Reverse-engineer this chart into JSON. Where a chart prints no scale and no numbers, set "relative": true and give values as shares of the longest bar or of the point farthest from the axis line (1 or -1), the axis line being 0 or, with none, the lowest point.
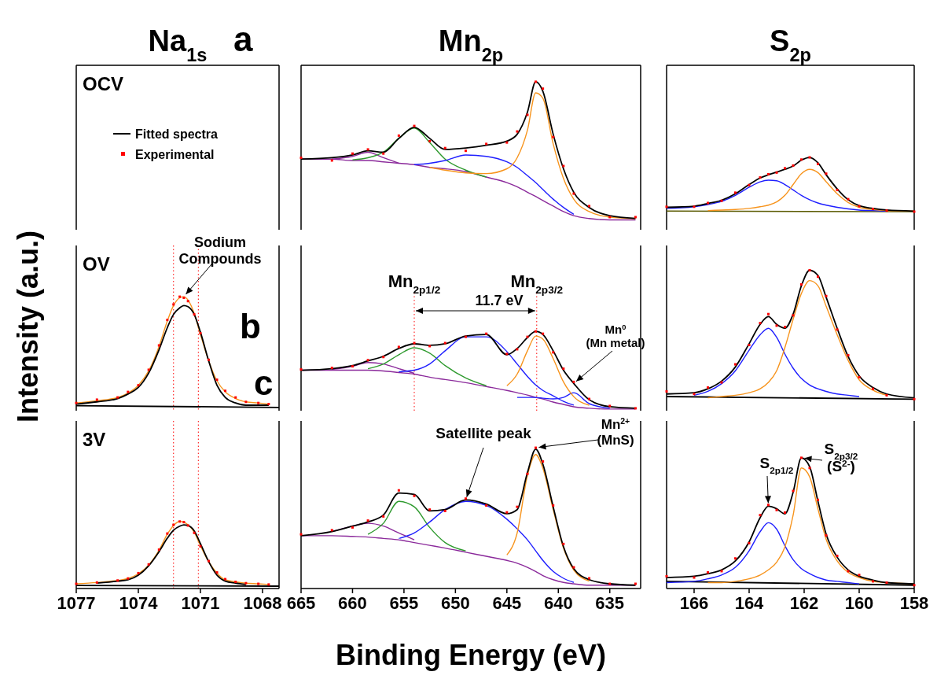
{
  "chart_data": [
    {
      "type": "other",
      "title": "Na$_{1s}$",
      "ylabel": "Intensity (a.u.)",
      "annotations": [
        "OCV",
        "a"
      ]
    },
    {
      "type": "line",
      "title": "Mn$_{2p}$",
      "relative": true,
      "xlim": [
        665,
        632
      ],
      "tick_labels": false,
      "x": [
        665,
        662,
        660,
        658.5,
        657,
        655.5,
        654,
        652.5,
        651,
        649,
        647,
        645,
        644,
        643,
        642.2,
        641.5,
        640.5,
        639.5,
        638.5,
        637,
        635,
        632.5
      ],
      "series": [
        {
          "color": "#8b2a9b",
          "values": [
            0.44,
            0.44,
            0.43,
            0.43,
            0.42,
            0.41,
            0.4,
            0.38,
            0.37,
            0.35,
            0.31,
            0.27,
            0.24,
            0.2,
            0.17,
            0.14,
            0.1,
            0.06,
            0.03,
            0.01,
            0,
            0
          ]
        },
        {
          "color": "#8b2a9b",
          "values": [
            null,
            0.44,
            0.46,
            0.49,
            0.45,
            0.41,
            null,
            null,
            null,
            null,
            null,
            null,
            null,
            null,
            null,
            null,
            null,
            null,
            null,
            null,
            null,
            null
          ]
        },
        {
          "color": "#2e9a2e",
          "values": [
            null,
            null,
            0.435,
            0.45,
            0.49,
            0.59,
            0.665,
            0.56,
            0.44,
            0.36,
            0.31,
            null,
            null,
            null,
            null,
            null,
            null,
            null,
            null,
            null,
            null,
            null
          ]
        },
        {
          "color": "#1f1fff",
          "values": [
            null,
            null,
            null,
            null,
            null,
            null,
            0.4,
            0.41,
            0.43,
            0.47,
            0.46,
            0.42,
            0.38,
            0.32,
            0.27,
            0.22,
            0.15,
            0.09,
            0.04,
            null,
            null,
            null
          ]
        },
        {
          "color": "#f7941d",
          "values": [
            null,
            null,
            null,
            null,
            null,
            null,
            null,
            0.38,
            0.36,
            0.34,
            0.335,
            0.37,
            0.45,
            0.65,
            0.92,
            0.88,
            0.55,
            0.3,
            0.15,
            0.06,
            0.02,
            0.01
          ]
        },
        {
          "color": "#000000",
          "values": [
            0.44,
            0.45,
            0.47,
            0.5,
            0.49,
            0.59,
            0.67,
            0.59,
            0.51,
            0.52,
            0.54,
            0.57,
            0.62,
            0.78,
            1.0,
            0.93,
            0.62,
            0.37,
            0.2,
            0.09,
            0.03,
            0.01
          ]
        },
        {
          "type": "scatter",
          "marker": "square",
          "color": "#ff0000",
          "values": [
            0.45,
            0.43,
            0.48,
            0.51,
            0.48,
            0.61,
            0.68,
            0.57,
            0.52,
            0.5,
            0.55,
            0.56,
            0.64,
            0.76,
            1.0,
            0.95,
            0.6,
            0.39,
            0.19,
            0.1,
            0.02,
            0.02
          ]
        }
      ]
    },
    {
      "type": "line",
      "title": "S$_{2p}$",
      "relative": true,
      "xlim": [
        167,
        158
      ],
      "tick_labels": false,
      "x": [
        167,
        166,
        165.5,
        165,
        164.5,
        164,
        163.6,
        163.3,
        163,
        162.7,
        162.4,
        162.1,
        161.8,
        161.5,
        161.2,
        160.8,
        160.4,
        160,
        159.5,
        159,
        158
      ],
      "series": [
        {
          "color": "#5a5a00",
          "x": [
            167,
            158
          ],
          "values": [
            0.01,
            0
          ]
        },
        {
          "color": "#1f1fff",
          "values": [
            0.06,
            0.09,
            0.13,
            0.19,
            0.3,
            0.45,
            0.55,
            0.58,
            0.57,
            0.5,
            0.4,
            0.3,
            0.22,
            0.16,
            0.12,
            0.08,
            0.05,
            0.03,
            0.02,
            0.01,
            null
          ]
        },
        {
          "color": "#f7941d",
          "values": [
            null,
            null,
            0.02,
            0.03,
            0.04,
            0.06,
            0.09,
            0.12,
            0.18,
            0.3,
            0.5,
            0.7,
            0.78,
            0.72,
            0.55,
            0.33,
            0.17,
            0.08,
            0.04,
            0.02,
            0.01
          ]
        },
        {
          "color": "#000000",
          "values": [
            0.08,
            0.1,
            0.15,
            0.21,
            0.33,
            0.5,
            0.62,
            0.68,
            0.73,
            0.78,
            0.84,
            0.95,
            1.0,
            0.9,
            0.68,
            0.42,
            0.22,
            0.11,
            0.06,
            0.03,
            0.01
          ]
        },
        {
          "type": "scatter",
          "marker": "square",
          "color": "#ff0000",
          "values": [
            0.09,
            0.09,
            0.16,
            0.2,
            0.35,
            0.49,
            0.63,
            0.69,
            0.72,
            0.8,
            0.85,
            0.96,
            1.0,
            0.88,
            0.7,
            0.4,
            0.23,
            0.1,
            0.05,
            0.02,
            0
          ]
        }
      ]
    },
    {
      "type": "line",
      "relative": true,
      "xlim": [
        1077,
        1067.2
      ],
      "tick_labels": false,
      "legend": "top",
      "x": [
        1077,
        1076,
        1075,
        1074.5,
        1074,
        1073.5,
        1073,
        1072.6,
        1072.3,
        1072,
        1071.8,
        1071.6,
        1071.3,
        1071,
        1070.6,
        1070.2,
        1069.8,
        1069.3,
        1068.8,
        1068.2,
        1067.7
      ],
      "annotations": [
        "OV",
        "b",
        "c",
        {
          "text": "Sodium\nCompounds",
          "x": 1071.8,
          "y": 1.0
        }
      ],
      "ref_lines": [
        {
          "axis": "x",
          "value": 1072.3,
          "color": "#ff0000",
          "line_style": "dotted"
        },
        {
          "axis": "x",
          "value": 1071.1,
          "color": "#ff0000",
          "line_style": "dotted"
        }
      ],
      "series": [
        {
          "color": "#000000",
          "x": [
            1077,
            1067.2
          ],
          "values": [
            0.015,
            0
          ]
        },
        {
          "color": "#f7941d",
          "values": [
            0.04,
            0.06,
            0.09,
            0.13,
            0.2,
            0.33,
            0.55,
            0.78,
            0.92,
            0.99,
            1.0,
            0.97,
            0.85,
            0.66,
            0.42,
            0.24,
            0.14,
            0.08,
            0.05,
            0.04,
            0.03
          ]
        },
        {
          "name": "Fitted spectra",
          "color": "#000000",
          "values": [
            0.03,
            0.05,
            0.08,
            0.12,
            0.18,
            0.31,
            0.52,
            0.72,
            0.84,
            0.9,
            0.92,
            0.91,
            0.84,
            0.68,
            0.42,
            0.2,
            0.09,
            0.04,
            0.02,
            0.02,
            0.02
          ]
        },
        {
          "name": "Experimental",
          "type": "scatter",
          "marker": "square",
          "color": "#ff0000",
          "values": [
            0.04,
            0.07,
            0.09,
            0.14,
            0.2,
            0.34,
            0.56,
            0.79,
            0.93,
            1.0,
            0.99,
            0.96,
            0.84,
            0.67,
            0.43,
            0.25,
            0.15,
            0.09,
            0.05,
            0.04,
            0.03
          ]
        }
      ]
    },
    {
      "type": "line",
      "relative": true,
      "xlim": [
        665,
        632
      ],
      "tick_labels": false,
      "x": [
        665,
        662,
        660,
        658.5,
        657,
        655.5,
        654,
        652.5,
        651,
        649,
        647,
        645,
        644,
        643,
        642.2,
        641.5,
        640.5,
        639.5,
        638.5,
        637,
        635,
        632.5
      ],
      "annotations": [
        {
          "text": "Mn$_{2p1/2}$",
          "x": 654,
          "y": 0.84
        },
        {
          "text": "Mn$_{2p3/2}$",
          "x": 642.1,
          "y": 1.0
        },
        "11.7 eV",
        {
          "text": "Mn$^{0}$\n(Mn metal)",
          "x": 638.5,
          "y": 0.33
        }
      ],
      "ref_lines": [
        {
          "axis": "x",
          "value": 654,
          "color": "#ff0000",
          "line_style": "dotted"
        },
        {
          "axis": "x",
          "value": 642.1,
          "color": "#ff0000",
          "line_style": "dotted"
        }
      ],
      "series": [
        {
          "color": "#8b2a9b",
          "values": [
            0.5,
            0.5,
            0.5,
            0.5,
            0.49,
            0.47,
            0.45,
            0.41,
            0.38,
            0.34,
            0.29,
            0.24,
            0.21,
            0.18,
            0.15,
            0.13,
            0.09,
            0.06,
            0.03,
            0.01,
            0,
            0
          ]
        },
        {
          "color": "#8b2a9b",
          "values": [
            null,
            0.51,
            0.55,
            0.6,
            0.58,
            0.52,
            0.46,
            null,
            null,
            null,
            null,
            null,
            null,
            null,
            null,
            null,
            null,
            null,
            null,
            null,
            null,
            null
          ]
        },
        {
          "color": "#2e9a2e",
          "values": [
            null,
            null,
            null,
            0.52,
            0.58,
            0.7,
            0.79,
            0.72,
            0.56,
            0.4,
            0.3,
            null,
            null,
            null,
            null,
            null,
            null,
            null,
            null,
            null,
            null,
            null
          ]
        },
        {
          "color": "#1f1fff",
          "values": [
            null,
            null,
            null,
            null,
            null,
            0.48,
            0.5,
            0.58,
            0.75,
            0.93,
            0.93,
            0.74,
            0.58,
            0.42,
            0.31,
            0.24,
            0.17,
            0.1,
            0.05,
            null,
            null,
            null
          ]
        },
        {
          "color": "#1f1fff",
          "x": [
            644,
            643,
            642.2,
            641.5,
            640.5,
            639.5,
            638.5,
            637,
            635
          ],
          "values": [
            0.15,
            0.15,
            0.15,
            0.14,
            0.13,
            0.15,
            0.21,
            0.07,
            0.01
          ]
        },
        {
          "color": "#f7941d",
          "values": [
            null,
            null,
            null,
            null,
            null,
            null,
            null,
            null,
            null,
            null,
            null,
            0.3,
            0.45,
            0.75,
            0.94,
            0.9,
            0.65,
            0.35,
            0.16,
            0.05,
            null,
            null
          ]
        },
        {
          "color": "#000000",
          "values": [
            0.5,
            0.52,
            0.56,
            0.62,
            0.68,
            0.78,
            0.84,
            0.82,
            0.84,
            0.94,
            0.96,
            0.7,
            0.78,
            0.92,
            1.0,
            0.96,
            0.75,
            0.5,
            0.33,
            0.12,
            0.03,
            0.01
          ]
        },
        {
          "type": "scatter",
          "marker": "square",
          "color": "#ff0000",
          "values": [
            0.51,
            0.53,
            0.55,
            0.63,
            0.67,
            0.8,
            0.85,
            0.81,
            0.85,
            0.93,
            0.97,
            0.71,
            0.77,
            0.93,
            1.0,
            0.97,
            0.73,
            0.52,
            0.35,
            0.13,
            0.04,
            0.01
          ]
        }
      ]
    },
    {
      "type": "line",
      "relative": true,
      "xlim": [
        167,
        158
      ],
      "tick_labels": false,
      "x": [
        167,
        166,
        165.5,
        165,
        164.5,
        164,
        163.6,
        163.3,
        163,
        162.7,
        162.4,
        162.1,
        161.8,
        161.5,
        161.2,
        160.8,
        160.4,
        160,
        159.5,
        159,
        158
      ],
      "series": [
        {
          "color": "#000000",
          "x": [
            167,
            158
          ],
          "values": [
            0.02,
            0
          ]
        },
        {
          "color": "#1f1fff",
          "values": [
            null,
            0.03,
            0.06,
            0.12,
            0.22,
            0.38,
            0.5,
            0.55,
            0.48,
            0.35,
            0.24,
            0.16,
            0.11,
            0.08,
            0.06,
            0.04,
            0.03,
            0.02,
            null,
            null,
            null
          ]
        },
        {
          "color": "#f7941d",
          "values": [
            null,
            null,
            0.01,
            0.02,
            0.03,
            0.05,
            0.08,
            0.13,
            0.22,
            0.4,
            0.62,
            0.82,
            0.92,
            0.88,
            0.72,
            0.5,
            0.3,
            0.15,
            0.07,
            0.03,
            null
          ]
        },
        {
          "color": "#000000",
          "values": [
            0.04,
            0.05,
            0.08,
            0.14,
            0.25,
            0.43,
            0.58,
            0.64,
            0.58,
            0.55,
            0.66,
            0.88,
            1.0,
            0.96,
            0.79,
            0.55,
            0.33,
            0.18,
            0.09,
            0.04,
            0.01
          ]
        },
        {
          "type": "scatter",
          "marker": "square",
          "color": "#ff0000",
          "values": [
            0.06,
            0.04,
            0.09,
            0.13,
            0.27,
            0.42,
            0.59,
            0.66,
            0.57,
            0.56,
            0.65,
            0.89,
            1.0,
            0.95,
            0.8,
            0.54,
            0.34,
            0.17,
            0.08,
            0.03,
            0
          ]
        }
      ]
    },
    {
      "type": "line",
      "relative": true,
      "xlim": [
        1077,
        1067.2
      ],
      "tick_labels": "x",
      "xticks": [
        1077,
        1074,
        1071,
        1068
      ],
      "x": [
        1077,
        1076,
        1075,
        1074.5,
        1074,
        1073.5,
        1073,
        1072.6,
        1072.3,
        1072,
        1071.8,
        1071.6,
        1071.3,
        1071,
        1070.6,
        1070.2,
        1069.8,
        1069.3,
        1068.8,
        1068.2,
        1067.7
      ],
      "annotations": [
        "3V"
      ],
      "ref_lines": [
        {
          "axis": "x",
          "value": 1072.3,
          "color": "#ff0000",
          "line_style": "dotted"
        },
        {
          "axis": "x",
          "value": 1071.1,
          "color": "#ff0000",
          "line_style": "dotted"
        }
      ],
      "series": [
        {
          "color": "#000000",
          "x": [
            1077,
            1067.2
          ],
          "values": [
            0.045,
            0.035
          ]
        },
        {
          "color": "#f7941d",
          "values": [
            0.07,
            0.09,
            0.12,
            0.15,
            0.22,
            0.35,
            0.57,
            0.81,
            0.94,
            1.0,
            0.99,
            0.95,
            0.84,
            0.64,
            0.4,
            0.23,
            0.13,
            0.1,
            0.08,
            0.07,
            0.06
          ]
        },
        {
          "color": "#000000",
          "values": [
            null,
            0.08,
            0.11,
            0.13,
            0.2,
            0.34,
            0.55,
            0.75,
            0.87,
            0.93,
            0.95,
            0.94,
            0.86,
            0.67,
            0.4,
            0.2,
            0.11,
            0.08,
            0.06,
            null,
            null
          ]
        },
        {
          "type": "scatter",
          "marker": "square",
          "color": "#ff0000",
          "values": [
            0.07,
            0.09,
            0.12,
            0.15,
            0.23,
            0.36,
            0.58,
            0.82,
            0.95,
            1.0,
            0.99,
            0.94,
            0.83,
            0.63,
            0.41,
            0.24,
            0.14,
            0.1,
            0.08,
            0.07,
            0.06
          ]
        }
      ]
    },
    {
      "type": "line",
      "relative": true,
      "xlim": [
        665,
        632
      ],
      "tick_labels": "x",
      "xticks": [
        665,
        660,
        655,
        650,
        645,
        640,
        635
      ],
      "xlabel": "Binding Energy (eV)",
      "x": [
        665,
        662,
        660,
        658.5,
        657,
        655.5,
        654,
        652.5,
        651,
        649,
        647,
        645,
        644,
        643,
        642.2,
        641.5,
        640.5,
        639.5,
        638.5,
        637,
        635,
        632.5
      ],
      "annotations": [
        {
          "text": "Satellite peak",
          "x": 649,
          "y": 0.62
        },
        {
          "text": "Mn$^{2+}$\n(MnS)",
          "x": 642.2,
          "y": 1.0
        }
      ],
      "series": [
        {
          "color": "#8b2a9b",
          "values": [
            0.36,
            0.36,
            0.355,
            0.35,
            0.34,
            0.33,
            0.31,
            0.29,
            0.27,
            0.24,
            0.21,
            0.18,
            0.16,
            0.13,
            0.1,
            0.07,
            0.04,
            0.02,
            0.01,
            0,
            0,
            0
          ]
        },
        {
          "color": "#8b2a9b",
          "values": [
            null,
            0.39,
            0.43,
            0.45,
            0.43,
            0.38,
            0.33,
            null,
            null,
            null,
            null,
            null,
            null,
            null,
            null,
            null,
            null,
            null,
            null,
            null,
            null,
            null
          ]
        },
        {
          "color": "#2e9a2e",
          "values": [
            null,
            null,
            null,
            0.37,
            0.45,
            0.61,
            0.57,
            0.42,
            0.31,
            0.25,
            null,
            null,
            null,
            null,
            null,
            null,
            null,
            null,
            null,
            null,
            null,
            null
          ]
        },
        {
          "color": "#1f1fff",
          "values": [
            null,
            null,
            null,
            null,
            null,
            0.34,
            0.38,
            0.46,
            0.55,
            0.61,
            0.58,
            0.48,
            0.41,
            0.33,
            0.25,
            0.18,
            0.1,
            0.05,
            0.02,
            null,
            null,
            null
          ]
        },
        {
          "color": "#f7941d",
          "values": [
            null,
            null,
            null,
            null,
            null,
            null,
            null,
            null,
            null,
            null,
            null,
            0.22,
            0.38,
            0.8,
            0.95,
            0.85,
            0.55,
            0.27,
            0.11,
            0.03,
            null,
            null
          ]
        },
        {
          "color": "#000000",
          "values": [
            0.36,
            0.39,
            0.43,
            0.46,
            0.51,
            0.67,
            0.66,
            0.54,
            0.55,
            0.62,
            0.59,
            0.52,
            0.55,
            0.82,
            0.99,
            0.88,
            0.57,
            0.28,
            0.12,
            0.04,
            0.01,
            0
          ]
        },
        {
          "type": "scatter",
          "marker": "square",
          "color": "#ff0000",
          "values": [
            0.37,
            0.4,
            0.42,
            0.47,
            0.5,
            0.69,
            0.65,
            0.55,
            0.54,
            0.63,
            0.58,
            0.53,
            0.57,
            0.81,
            1.0,
            0.9,
            0.58,
            0.3,
            0.13,
            0.05,
            0.01,
            0.01
          ]
        }
      ]
    },
    {
      "type": "line",
      "relative": true,
      "xlim": [
        167,
        158
      ],
      "tick_labels": "x",
      "xticks": [
        166,
        164,
        162,
        160,
        158
      ],
      "x": [
        167,
        166,
        165.5,
        165,
        164.5,
        164,
        163.6,
        163.3,
        163,
        162.7,
        162.4,
        162.1,
        161.8,
        161.5,
        161.2,
        160.8,
        160.4,
        160,
        159.5,
        159,
        158
      ],
      "annotations": [
        {
          "text": "S$_{2p1/2}$",
          "x": 163.3,
          "y": 0.62
        },
        {
          "text": "S$_{2p3/2}$\n(S$^{2-}$)",
          "x": 162.1,
          "y": 1.0
        }
      ],
      "series": [
        {
          "color": "#000000",
          "x": [
            167,
            158
          ],
          "values": [
            0.03,
            0
          ]
        },
        {
          "color": "#1f1fff",
          "values": [
            0.02,
            0.03,
            0.05,
            0.08,
            0.14,
            0.27,
            0.42,
            0.49,
            0.44,
            0.31,
            0.2,
            0.13,
            0.09,
            0.06,
            0.04,
            0.03,
            0.02,
            0.01,
            null,
            null,
            null
          ]
        },
        {
          "color": "#f7941d",
          "values": [
            null,
            null,
            0.02,
            0.02,
            0.03,
            0.05,
            0.08,
            0.12,
            0.18,
            0.3,
            0.55,
            0.92,
            0.85,
            0.6,
            0.36,
            0.19,
            0.1,
            0.06,
            0.03,
            0.02,
            0.01
          ]
        },
        {
          "color": "#000000",
          "values": [
            0.06,
            0.07,
            0.09,
            0.12,
            0.19,
            0.34,
            0.53,
            0.62,
            0.6,
            0.56,
            0.73,
            1.0,
            0.93,
            0.66,
            0.4,
            0.22,
            0.12,
            0.07,
            0.04,
            0.02,
            0.01
          ]
        },
        {
          "type": "scatter",
          "marker": "square",
          "color": "#ff0000",
          "values": [
            0.07,
            0.06,
            0.1,
            0.11,
            0.21,
            0.33,
            0.55,
            0.63,
            0.59,
            0.57,
            0.74,
            1.0,
            0.92,
            0.67,
            0.39,
            0.23,
            0.11,
            0.08,
            0.03,
            0.02,
            0
          ]
        }
      ]
    }
  ]
}
